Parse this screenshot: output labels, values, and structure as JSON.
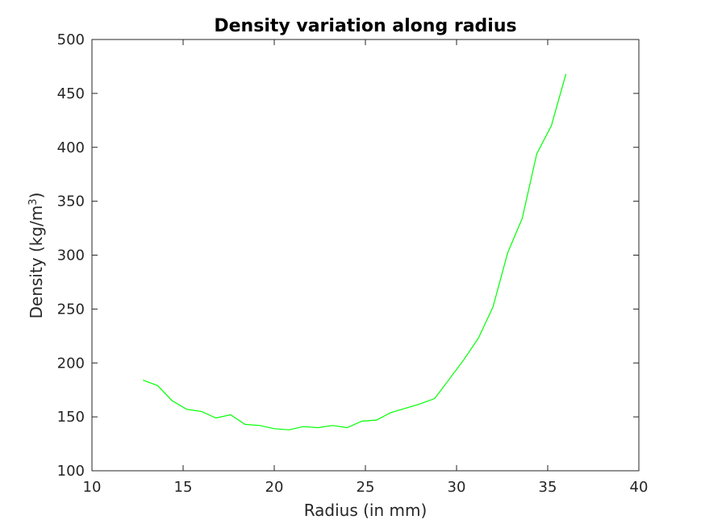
{
  "chart_data": {
    "type": "line",
    "title": "Density variation along radius",
    "xlabel": "Radius (in mm)",
    "ylabel_main": "Density (kg/m",
    "ylabel_sup": "3",
    "ylabel_close": ")",
    "xlim": [
      10,
      40
    ],
    "ylim": [
      100,
      500
    ],
    "xticks": [
      10,
      15,
      20,
      25,
      30,
      35,
      40
    ],
    "yticks": [
      100,
      150,
      200,
      250,
      300,
      350,
      400,
      450,
      500
    ],
    "grid": false,
    "series": [
      {
        "color": "#00ff00",
        "x": [
          12.8,
          13.6,
          14.4,
          15.2,
          16.0,
          16.8,
          17.6,
          18.4,
          19.2,
          20.0,
          20.8,
          21.6,
          22.4,
          23.2,
          24.0,
          24.8,
          25.6,
          26.4,
          27.2,
          28.0,
          28.8,
          29.6,
          30.4,
          31.2,
          32.0,
          32.8,
          33.6,
          34.4,
          35.2,
          36.0
        ],
        "y": [
          184,
          179,
          165,
          157,
          155,
          149,
          152,
          143,
          142,
          139,
          138,
          141,
          140,
          142,
          140,
          146,
          147,
          154,
          158,
          162,
          167,
          185,
          203,
          223,
          252,
          302,
          334,
          394,
          420,
          468
        ]
      }
    ]
  }
}
